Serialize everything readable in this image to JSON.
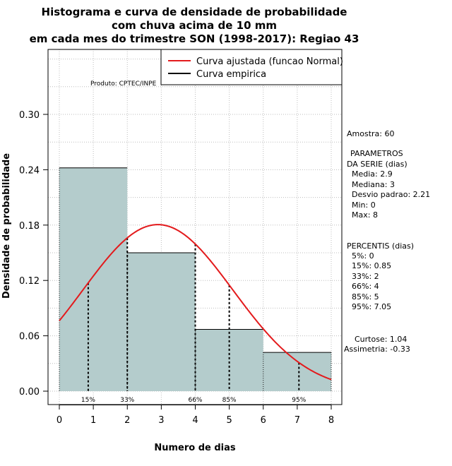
{
  "chart_data": {
    "type": "bar",
    "title_lines": [
      "Histograma e curva de densidade de probabilidade",
      "com chuva acima de 10 mm",
      "em cada mes do trimestre SON (1998-2017): Regiao 43"
    ],
    "xlabel": "Numero de dias",
    "ylabel": "Densidade de probabilidade",
    "xlim": [
      0,
      8
    ],
    "ylim": [
      0,
      0.36
    ],
    "x_ticks": [
      0,
      1,
      2,
      3,
      4,
      5,
      6,
      7,
      8
    ],
    "y_ticks": [
      0.0,
      0.06,
      0.12,
      0.18,
      0.24,
      0.3
    ],
    "y_tick_labels": [
      "0.00",
      "0.06",
      "0.12",
      "0.18",
      "0.24",
      "0.30"
    ],
    "bins": [
      {
        "from": 0,
        "to": 2,
        "density": 0.242
      },
      {
        "from": 2,
        "to": 4,
        "density": 0.15
      },
      {
        "from": 4,
        "to": 6,
        "density": 0.067
      },
      {
        "from": 6,
        "to": 8,
        "density": 0.042
      }
    ],
    "fitted_curve": {
      "name": "Curva ajustada (funcao Normal)",
      "mean": 2.9,
      "sd": 2.21,
      "color": "#e31a1c"
    },
    "empirical_curve": {
      "name": "Curva empirica",
      "color": "#000000"
    },
    "percentile_lines": [
      {
        "label": "15%",
        "x": 0.85
      },
      {
        "label": "33%",
        "x": 2
      },
      {
        "label": "66%",
        "x": 4
      },
      {
        "label": "85%",
        "x": 5
      },
      {
        "label": "95%",
        "x": 7.05
      }
    ],
    "grid": true,
    "legend_position": "top-right"
  },
  "colors": {
    "bar_fill": "#b4cccc",
    "grid": "#bdbdbd",
    "fitted": "#e31a1c"
  },
  "credit": "Produto: CPTEC/INPE",
  "stats": {
    "amostra": "Amostra: 60",
    "params_title_1": "PARAMETROS",
    "params_title_2": "DA SERIE (dias)",
    "media": "Media: 2.9",
    "mediana": "Mediana: 3",
    "desvio": "Desvio padrao: 2.21",
    "min": "Min: 0",
    "max": "Max: 8",
    "percentis_title": "PERCENTIS (dias)",
    "p5": "5%: 0",
    "p15": "15%: 0.85",
    "p33": "33%: 2",
    "p66": "66%: 4",
    "p85": "85%: 5",
    "p95": "95%: 7.05",
    "curtose": "Curtose: 1.04",
    "assimetria": "Assimetria: -0.33"
  }
}
